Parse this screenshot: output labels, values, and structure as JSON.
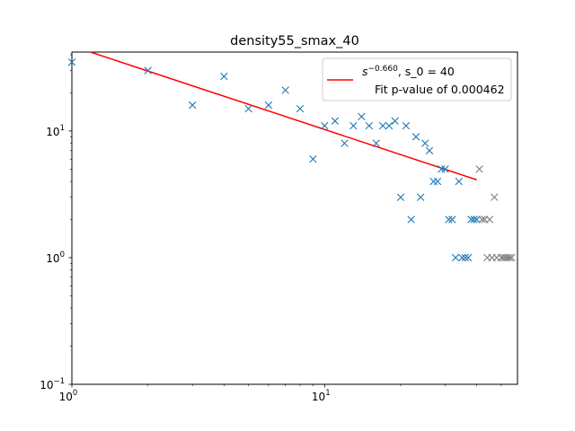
{
  "chart_data": {
    "type": "scatter",
    "title": "density55_smax_40",
    "xlabel": "",
    "ylabel": "",
    "xscale": "log",
    "yscale": "log",
    "xlim": [
      1,
      58
    ],
    "ylim": [
      0.1,
      42
    ],
    "x_ticks": [
      {
        "value": 1,
        "base": "10",
        "exp": "0"
      },
      {
        "value": 10,
        "base": "10",
        "exp": "1"
      }
    ],
    "y_ticks": [
      {
        "value": 0.1,
        "base": "10",
        "exp": "−1"
      },
      {
        "value": 1,
        "base": "10",
        "exp": "0"
      },
      {
        "value": 10,
        "base": "10",
        "exp": "1"
      }
    ],
    "grid": false,
    "legend_position": "top-right",
    "legend": {
      "fit_label_base": "s",
      "fit_label_exp": "−0.660",
      "fit_label_suffix": ", s_0 = 40",
      "pvalue_text": "Fit p-value of 0.000462"
    },
    "colors": {
      "fit": "#ff0000",
      "fitted_points": "#1f77b4",
      "excluded_points": "#808080"
    },
    "fit_line": {
      "exponent": -0.66,
      "x_start": 1,
      "x_end": 40,
      "y_at_1": 47
    },
    "series": [
      {
        "name": "fitted",
        "marker": "x",
        "points": [
          [
            1,
            35
          ],
          [
            2,
            30
          ],
          [
            3,
            16
          ],
          [
            4,
            27
          ],
          [
            5,
            15
          ],
          [
            6,
            16
          ],
          [
            7,
            21
          ],
          [
            8,
            15
          ],
          [
            9,
            6
          ],
          [
            10,
            11
          ],
          [
            11,
            12
          ],
          [
            12,
            8
          ],
          [
            13,
            11
          ],
          [
            14,
            13
          ],
          [
            15,
            11
          ],
          [
            16,
            8
          ],
          [
            17,
            11
          ],
          [
            18,
            11
          ],
          [
            19,
            12
          ],
          [
            20,
            3
          ],
          [
            21,
            11
          ],
          [
            22,
            2
          ],
          [
            23,
            9
          ],
          [
            24,
            3
          ],
          [
            25,
            8
          ],
          [
            26,
            7
          ],
          [
            27,
            4
          ],
          [
            28,
            4
          ],
          [
            29,
            5
          ],
          [
            30,
            5
          ],
          [
            31,
            2
          ],
          [
            32,
            2
          ],
          [
            33,
            1
          ],
          [
            34,
            4
          ],
          [
            35,
            1
          ],
          [
            36,
            1
          ],
          [
            37,
            1
          ],
          [
            38,
            2
          ],
          [
            39,
            2
          ],
          [
            40,
            2
          ]
        ]
      },
      {
        "name": "excluded",
        "marker": "x",
        "points": [
          [
            41,
            5
          ],
          [
            42,
            2
          ],
          [
            43,
            2
          ],
          [
            44,
            1
          ],
          [
            45,
            2
          ],
          [
            46,
            1
          ],
          [
            47,
            3
          ],
          [
            48,
            1
          ],
          [
            50,
            1
          ],
          [
            51,
            1
          ],
          [
            52,
            1
          ],
          [
            53,
            1
          ],
          [
            54,
            1
          ],
          [
            55,
            1
          ]
        ]
      }
    ]
  }
}
